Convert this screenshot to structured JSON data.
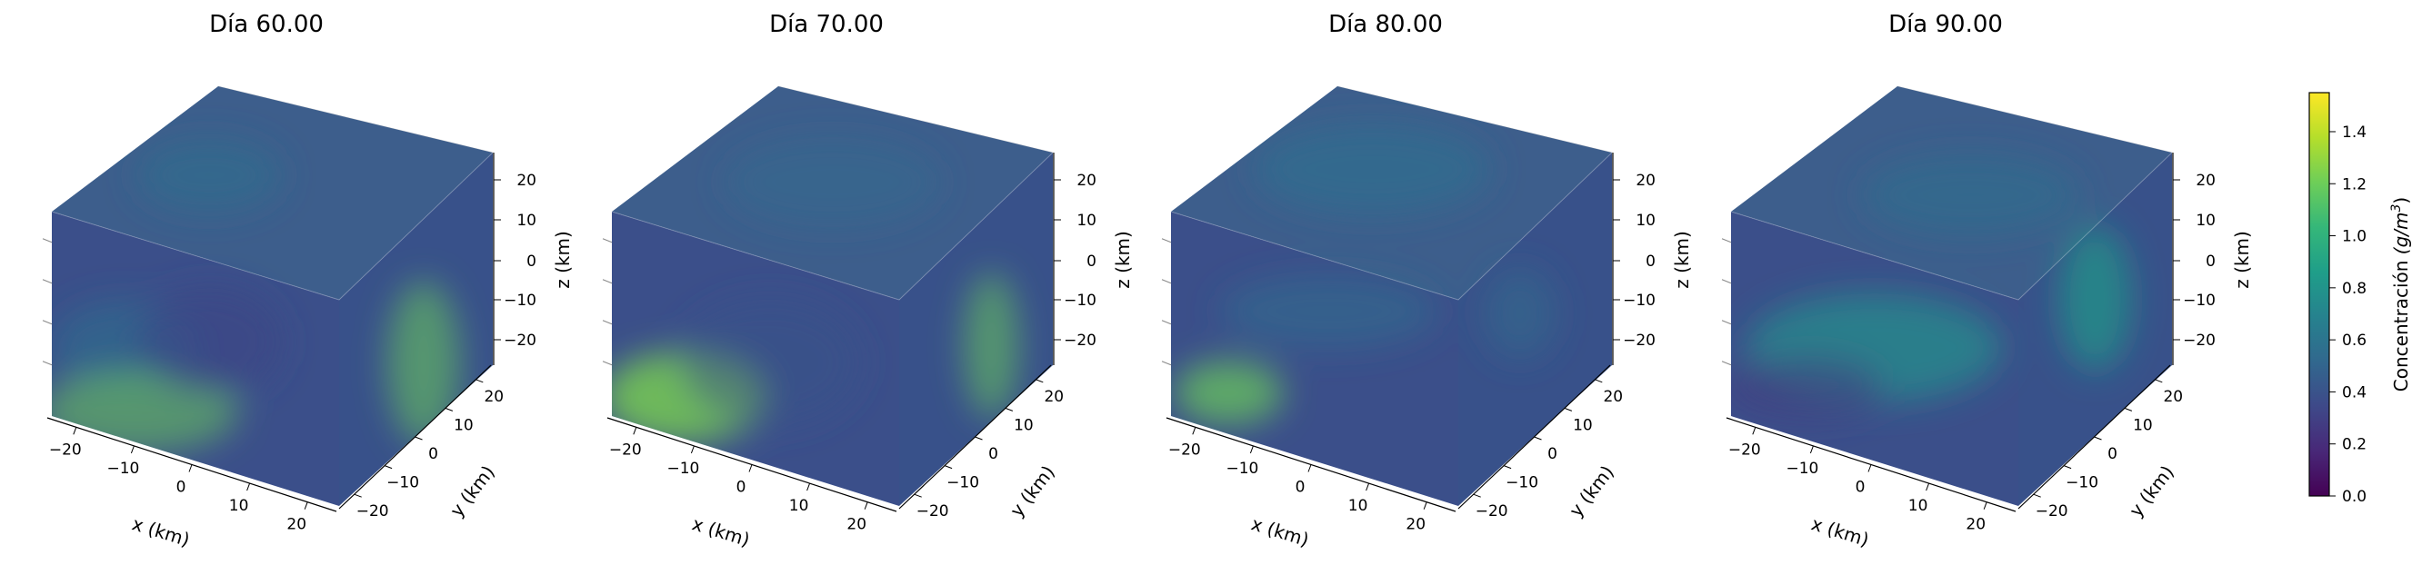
{
  "chart_data": {
    "type": "heatmap",
    "subtype": "3d-volume-cube",
    "panels": [
      {
        "title": "Día 60.00"
      },
      {
        "title": "Día 70.00"
      },
      {
        "title": "Día 80.00"
      },
      {
        "title": "Día 90.00"
      }
    ],
    "xlabel": "x (km)",
    "ylabel": "y (km)",
    "zlabel": "z (km)",
    "x_ticks": [
      "−20",
      "−10",
      "0",
      "10",
      "20"
    ],
    "y_ticks": [
      "−20",
      "−10",
      "0",
      "10",
      "20"
    ],
    "z_ticks": [
      "20",
      "10",
      "0",
      "−10",
      "−20"
    ],
    "xlim": [
      -25,
      25
    ],
    "ylim": [
      -25,
      25
    ],
    "zlim": [
      -25,
      25
    ],
    "colorbar": {
      "label": "Concentración (g/m³)",
      "label_main": "Concentración ",
      "label_unit": "(g/m",
      "label_sup": "3",
      "label_close": ")",
      "ticks": [
        "0.0",
        "0.2",
        "0.4",
        "0.6",
        "0.8",
        "1.0",
        "1.2",
        "1.4"
      ],
      "tick_values": [
        0.0,
        0.2,
        0.4,
        0.6,
        0.8,
        1.0,
        1.2,
        1.4
      ],
      "range": [
        0.0,
        1.55
      ],
      "colormap": "viridis"
    },
    "grid": false
  },
  "colors": {
    "viridis_stops": [
      "#440154",
      "#482878",
      "#3e4989",
      "#31688e",
      "#26828e",
      "#1f9e89",
      "#35b779",
      "#6ece58",
      "#b5de2b",
      "#fde725"
    ],
    "low": "#3b4f8a",
    "mid": "#2f6e8e",
    "high": "#6cce59"
  }
}
